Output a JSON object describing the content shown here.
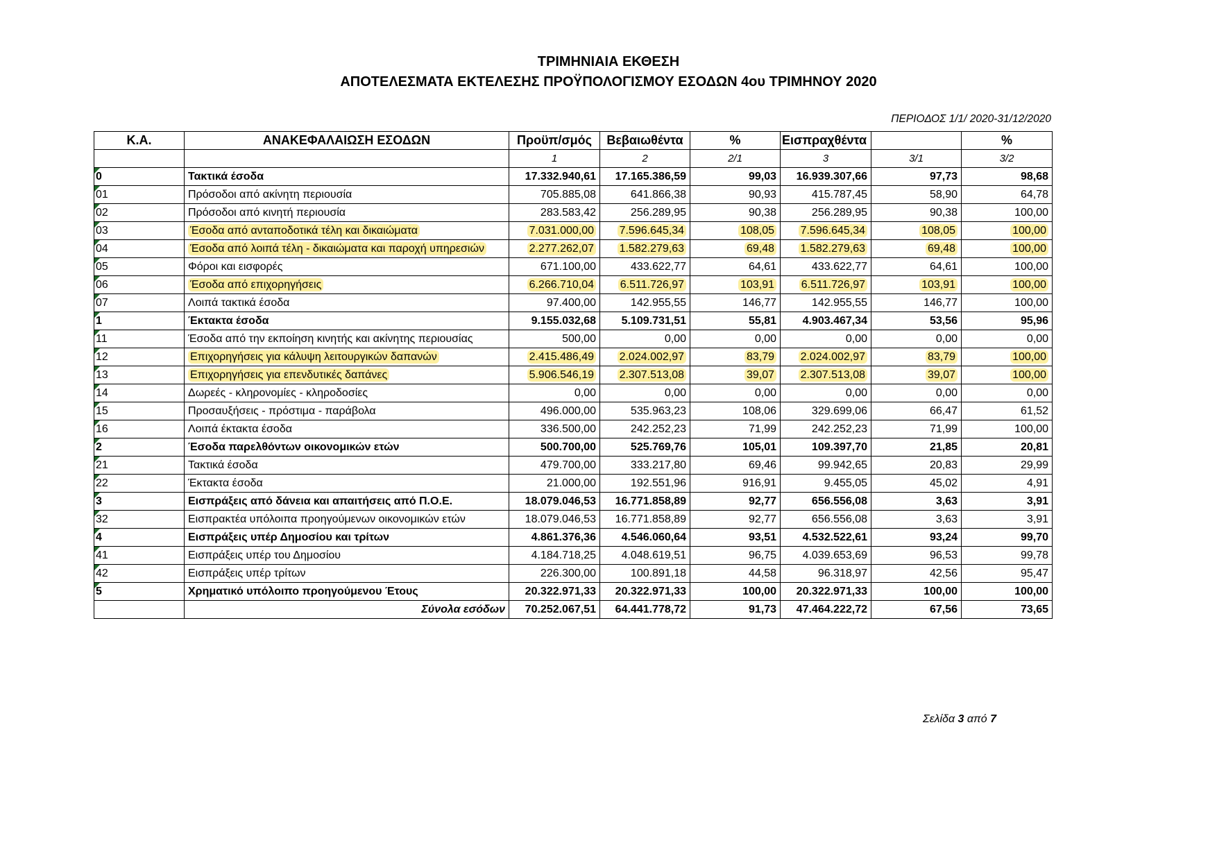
{
  "header": {
    "title": "ΤΡΙΜΗΝΙΑΙΑ ΕΚΘΕΣΗ",
    "subtitle": "ΑΠΟΤΕΛΕΣΜΑΤΑ ΕΚΤΕΛΕΣΗΣ ΠΡΟΫΠΟΛΟΓΙΣΜΟΥ ΕΣΟΔΩΝ 4ου ΤΡΙΜΗΝΟΥ 2020",
    "period": "ΠΕΡΙΟΔΟΣ 1/1/ 2020-31/12/2020"
  },
  "table": {
    "columns": [
      "Κ.Α.",
      "ΑΝΑΚΕΦΑΛΑΙΩΣΗ ΕΣΟΔΩΝ",
      "Προϋπ/σμός",
      "Βεβαιωθέντα",
      "%",
      "Εισπραχθέντα",
      "%"
    ],
    "column_numbers": [
      "1",
      "2",
      "2/1",
      "3",
      "3/1",
      "3/2"
    ],
    "highlight_color": "#fcefa0",
    "rows": [
      {
        "code": "0",
        "name": "Τακτικά έσοδα",
        "bold": true,
        "values": [
          "17.332.940,61",
          "17.165.386,59",
          "99,03",
          "16.939.307,66",
          "97,73",
          "98,68"
        ]
      },
      {
        "code": "01",
        "name": "Πρόσοδοι από ακίνητη περιουσία",
        "values": [
          "705.885,08",
          "641.866,38",
          "90,93",
          "415.787,45",
          "58,90",
          "64,78"
        ]
      },
      {
        "code": "02",
        "name": "Πρόσοδοι από κινητή περιουσία",
        "values": [
          "283.583,42",
          "256.289,95",
          "90,38",
          "256.289,95",
          "90,38",
          "100,00"
        ]
      },
      {
        "code": "03",
        "name": "Έσοδα από ανταποδοτικά τέλη και δικαιώματα",
        "highlight": true,
        "values": [
          "7.031.000,00",
          "7.596.645,34",
          "108,05",
          "7.596.645,34",
          "108,05",
          "100,00"
        ]
      },
      {
        "code": "04",
        "name": "Έσοδα από λοιπά τέλη - δικαιώματα και παροχή υπηρεσιών",
        "highlight": true,
        "values": [
          "2.277.262,07",
          "1.582.279,63",
          "69,48",
          "1.582.279,63",
          "69,48",
          "100,00"
        ]
      },
      {
        "code": "05",
        "name": "Φόροι και εισφορές",
        "values": [
          "671.100,00",
          "433.622,77",
          "64,61",
          "433.622,77",
          "64,61",
          "100,00"
        ]
      },
      {
        "code": "06",
        "name": "Έσοδα από επιχορηγήσεις",
        "highlight": true,
        "values": [
          "6.266.710,04",
          "6.511.726,97",
          "103,91",
          "6.511.726,97",
          "103,91",
          "100,00"
        ]
      },
      {
        "code": "07",
        "name": "Λοιπά τακτικά έσοδα",
        "values": [
          "97.400,00",
          "142.955,55",
          "146,77",
          "142.955,55",
          "146,77",
          "100,00"
        ]
      },
      {
        "code": "1",
        "name": "Έκτακτα έσοδα",
        "bold": true,
        "values": [
          "9.155.032,68",
          "5.109.731,51",
          "55,81",
          "4.903.467,34",
          "53,56",
          "95,96"
        ]
      },
      {
        "code": "11",
        "name": "Έσοδα από την εκποίηση κινητής και ακίνητης περιουσίας",
        "values": [
          "500,00",
          "0,00",
          "0,00",
          "0,00",
          "0,00",
          "0,00"
        ]
      },
      {
        "code": "12",
        "name": "Επιχορηγήσεις για κάλυψη λειτουργικών δαπανών",
        "highlight": true,
        "values": [
          "2.415.486,49",
          "2.024.002,97",
          "83,79",
          "2.024.002,97",
          "83,79",
          "100,00"
        ]
      },
      {
        "code": "13",
        "name": "Επιχορηγήσεις για επενδυτικές δαπάνες",
        "highlight": true,
        "values": [
          "5.906.546,19",
          "2.307.513,08",
          "39,07",
          "2.307.513,08",
          "39,07",
          "100,00"
        ]
      },
      {
        "code": "14",
        "name": "Δωρεές - κληρονομίες - κληροδοσίες",
        "values": [
          "0,00",
          "0,00",
          "0,00",
          "0,00",
          "0,00",
          "0,00"
        ]
      },
      {
        "code": "15",
        "name": "Προσαυξήσεις - πρόστιμα - παράβολα",
        "values": [
          "496.000,00",
          "535.963,23",
          "108,06",
          "329.699,06",
          "66,47",
          "61,52"
        ]
      },
      {
        "code": "16",
        "name": "Λοιπά έκτακτα έσοδα",
        "values": [
          "336.500,00",
          "242.252,23",
          "71,99",
          "242.252,23",
          "71,99",
          "100,00"
        ]
      },
      {
        "code": "2",
        "name": "Έσοδα παρελθόντων οικονομικών ετών",
        "bold": true,
        "values": [
          "500.700,00",
          "525.769,76",
          "105,01",
          "109.397,70",
          "21,85",
          "20,81"
        ]
      },
      {
        "code": "21",
        "name": "Τακτικά έσοδα",
        "values": [
          "479.700,00",
          "333.217,80",
          "69,46",
          "99.942,65",
          "20,83",
          "29,99"
        ]
      },
      {
        "code": "22",
        "name": "Έκτακτα έσοδα",
        "values": [
          "21.000,00",
          "192.551,96",
          "916,91",
          "9.455,05",
          "45,02",
          "4,91"
        ]
      },
      {
        "code": "3",
        "name": "Εισπράξεις από δάνεια και απαιτήσεις από Π.Ο.Ε.",
        "bold": true,
        "values": [
          "18.079.046,53",
          "16.771.858,89",
          "92,77",
          "656.556,08",
          "3,63",
          "3,91"
        ]
      },
      {
        "code": "32",
        "name": "Εισπρακτέα υπόλοιπα προηγούμενων οικονομικών ετών",
        "values": [
          "18.079.046,53",
          "16.771.858,89",
          "92,77",
          "656.556,08",
          "3,63",
          "3,91"
        ]
      },
      {
        "code": "4",
        "name": "Εισπράξεις υπέρ Δημοσίου και τρίτων",
        "bold": true,
        "values": [
          "4.861.376,36",
          "4.546.060,64",
          "93,51",
          "4.532.522,61",
          "93,24",
          "99,70"
        ]
      },
      {
        "code": "41",
        "name": "Εισπράξεις υπέρ του Δημοσίου",
        "values": [
          "4.184.718,25",
          "4.048.619,51",
          "96,75",
          "4.039.653,69",
          "96,53",
          "99,78"
        ]
      },
      {
        "code": "42",
        "name": "Εισπράξεις υπέρ τρίτων",
        "values": [
          "226.300,00",
          "100.891,18",
          "44,58",
          "96.318,97",
          "42,56",
          "95,47"
        ]
      },
      {
        "code": "5",
        "name": "Χρηματικό υπόλοιπο προηγούμενου Έτους",
        "bold": true,
        "values": [
          "20.322.971,33",
          "20.322.971,33",
          "100,00",
          "20.322.971,33",
          "100,00",
          "100,00"
        ]
      }
    ],
    "total": {
      "name": "Σύνολα εσόδων",
      "values": [
        "70.252.067,51",
        "64.441.778,72",
        "91,73",
        "47.464.222,72",
        "67,56",
        "73,65"
      ]
    }
  },
  "footer": {
    "page_label": "Σελίδα",
    "page": 3,
    "of": "από",
    "pages": 7
  }
}
